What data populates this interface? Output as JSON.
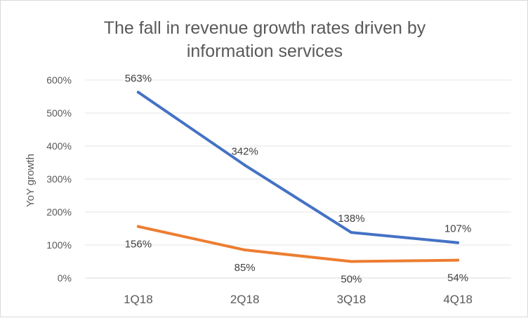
{
  "chart_data": {
    "type": "line",
    "title_lines": [
      "The fall in revenue growth rates driven by",
      "information services"
    ],
    "xlabel": "",
    "ylabel": "YoY growth",
    "categories": [
      "1Q18",
      "2Q18",
      "3Q18",
      "4Q18"
    ],
    "ylim": [
      0,
      600
    ],
    "yticks": [
      0,
      100,
      200,
      300,
      400,
      500,
      600
    ],
    "ytick_labels": [
      "0%",
      "100%",
      "200%",
      "300%",
      "400%",
      "500%",
      "600%"
    ],
    "grid": true,
    "legend": "none",
    "series": [
      {
        "values": [
          563,
          342,
          138,
          107
        ],
        "labels": [
          "563%",
          "342%",
          "138%",
          "107%"
        ],
        "color": "#4472C4"
      },
      {
        "values": [
          156,
          85,
          50,
          54
        ],
        "labels": [
          "156%",
          "85%",
          "50%",
          "54%"
        ],
        "color": "#ED7D31"
      }
    ]
  }
}
